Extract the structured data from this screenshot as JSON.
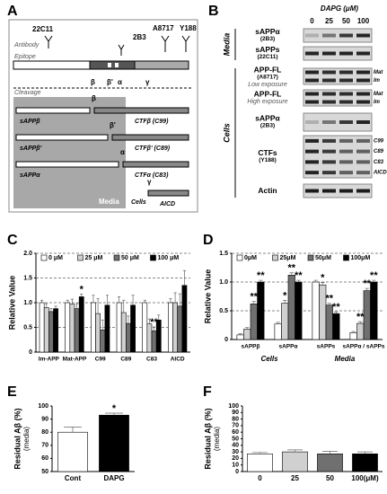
{
  "diagram": {
    "panel": "A",
    "antibody_label": "Antibody",
    "epitope_label": "Epitope",
    "cleavage_label": "Cleavage",
    "antibodies": [
      "22C11",
      "2B3",
      "A8717",
      "Y188"
    ],
    "sites": [
      "β",
      "β'",
      "α",
      "γ"
    ],
    "products": [
      {
        "site": "β",
        "soluble": "sAPPβ",
        "ctf": "CTFβ (C99)"
      },
      {
        "site": "β'",
        "soluble": "sAPPβ'",
        "ctf": "CTFβ' (C89)"
      },
      {
        "site": "α",
        "soluble": "sAPPα",
        "ctf": "CTFα (C83)"
      },
      {
        "site": "γ",
        "ctf": "AICD"
      }
    ],
    "compartments": [
      "Media",
      "Cells"
    ]
  },
  "blot": {
    "panel": "B",
    "treatment": "DAPG (μM)",
    "doses": [
      "0",
      "25",
      "50",
      "100"
    ],
    "rows": [
      {
        "label": "sAPPα",
        "antibody": "(2B3)"
      },
      {
        "label": "sAPPs",
        "antibody": "(22C11)"
      },
      {
        "label": "APP-FL",
        "antibody": "(A8717)",
        "note": "Low exposure",
        "bands": [
          "Mat",
          "Im"
        ]
      },
      {
        "label": "APP-FL",
        "note": "High exposure",
        "bands": [
          "Mat",
          "Im"
        ]
      },
      {
        "label": "sAPPα",
        "antibody": "(2B3)"
      },
      {
        "label": "CTFs",
        "antibody": "(Y188)",
        "bands": [
          "C99",
          "C89",
          "C83",
          "AICD"
        ]
      },
      {
        "label": "Actin"
      }
    ],
    "groups": [
      "Media",
      "Cells"
    ]
  },
  "chart_data": [
    {
      "type": "bar",
      "panel": "C",
      "ylabel": "Relative Value",
      "categories": [
        "Im-APP",
        "Mat-APP",
        "C99",
        "C89",
        "C83",
        "AICD"
      ],
      "ylim": [
        0,
        2
      ],
      "yticks": [
        0,
        0.5,
        {
          "value": 1,
          "label": "1.0"
        },
        1.5,
        {
          "value": 2,
          "label": "2.0"
        }
      ],
      "grid": true,
      "series": [
        {
          "name": "0 μM",
          "color": "#ffffff",
          "values": [
            1.0,
            1.0,
            1.0,
            1.0,
            1.0,
            1.0
          ],
          "errors": [
            0.05,
            0.05,
            0.15,
            0.12,
            0.05,
            0.08
          ],
          "significance": [
            null,
            null,
            null,
            null,
            null,
            null
          ]
        },
        {
          "name": "25 μM",
          "color": "#d0d0d0",
          "values": [
            0.9,
            0.97,
            0.78,
            0.8,
            0.57,
            1.0
          ],
          "errors": [
            0.08,
            0.1,
            0.3,
            0.25,
            0.1,
            0.2
          ],
          "significance": [
            null,
            null,
            null,
            null,
            null,
            null
          ]
        },
        {
          "name": "50 μM",
          "color": "#707070",
          "values": [
            0.82,
            0.88,
            0.45,
            0.58,
            0.43,
            0.93
          ],
          "errors": [
            0.06,
            0.1,
            0.2,
            0.15,
            0.08,
            0.25
          ],
          "significance": [
            null,
            null,
            null,
            null,
            "**",
            null
          ]
        },
        {
          "name": "100 μM",
          "color": "#000000",
          "values": [
            0.88,
            1.12,
            0.95,
            0.95,
            0.65,
            1.35
          ],
          "errors": [
            0.05,
            0.05,
            0.2,
            0.2,
            0.1,
            0.3
          ],
          "significance": [
            null,
            "*",
            null,
            null,
            null,
            null
          ]
        }
      ]
    },
    {
      "type": "bar",
      "panel": "D",
      "ylabel": "Relative Value",
      "categories": [
        "sAPPβ",
        "sAPPα",
        "sAPPs",
        "sAPPα / sAPPs"
      ],
      "groups": [
        {
          "label": "Cells",
          "categories": [
            0,
            1
          ]
        },
        {
          "label": "Media",
          "categories": [
            2,
            3
          ]
        }
      ],
      "ylim": [
        0,
        1.5
      ],
      "yticks": [
        0,
        0.5,
        {
          "value": 1,
          "label": "1.0"
        },
        1.5
      ],
      "grid": true,
      "series": [
        {
          "name": "0μM",
          "color": "#ffffff",
          "values": [
            0.08,
            0.27,
            1.0,
            0.12
          ],
          "errors": [
            0.02,
            0.03,
            0.03,
            0.02
          ],
          "significance": [
            null,
            null,
            null,
            null
          ]
        },
        {
          "name": "25μM",
          "color": "#d0d0d0",
          "values": [
            0.18,
            0.63,
            0.95,
            0.28
          ],
          "errors": [
            0.03,
            0.05,
            0.04,
            0.03
          ],
          "significance": [
            null,
            "*",
            "*",
            "**"
          ]
        },
        {
          "name": "50μM",
          "color": "#707070",
          "values": [
            0.62,
            1.12,
            0.6,
            0.85
          ],
          "errors": [
            0.04,
            0.04,
            0.03,
            0.04
          ],
          "significance": [
            "**",
            "**",
            "**",
            "**"
          ]
        },
        {
          "name": "100μM",
          "color": "#000000",
          "values": [
            1.0,
            1.0,
            0.45,
            1.0
          ],
          "errors": [
            0.03,
            0.03,
            0.03,
            0.03
          ],
          "significance": [
            "**",
            "**",
            "**",
            "**"
          ]
        }
      ]
    },
    {
      "type": "bar",
      "panel": "E",
      "ylabel": "Residual Aβ (%)",
      "ylabel_note": "(media)",
      "categories": [
        "Cont",
        "DAPG"
      ],
      "values": [
        80,
        93
      ],
      "errors": [
        4,
        1.5
      ],
      "colors": [
        "#ffffff",
        "#000000"
      ],
      "significance": [
        null,
        "*"
      ],
      "ylim": [
        50,
        100
      ],
      "yticks": [
        50,
        60,
        70,
        80,
        90,
        100
      ],
      "grid": false
    },
    {
      "type": "bar",
      "panel": "F",
      "ylabel": "Residual Aβ (%)",
      "ylabel_note": "(media)",
      "categories": [
        "0",
        "25",
        "50",
        "100(μM)"
      ],
      "values": [
        27,
        30,
        27,
        27
      ],
      "errors": [
        2,
        3,
        4,
        3
      ],
      "colors": [
        "#ffffff",
        "#d0d0d0",
        "#707070",
        "#000000"
      ],
      "significance": [
        null,
        null,
        null,
        null
      ],
      "ylim": [
        0,
        100
      ],
      "yticks": [
        0,
        10,
        20,
        30,
        40,
        50,
        60,
        70,
        80,
        90,
        100
      ],
      "grid": false
    }
  ]
}
